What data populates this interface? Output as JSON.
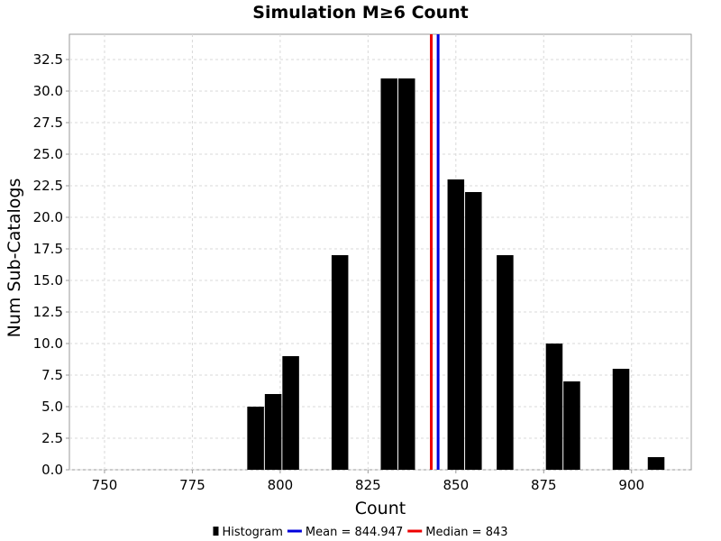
{
  "chart_data": {
    "type": "bar",
    "title": "Simulation M≥6 Count",
    "xlabel": "Count",
    "ylabel": "Num Sub-Catalogs",
    "xlim": [
      740,
      917
    ],
    "ylim": [
      0,
      34.5
    ],
    "grid": true,
    "x_ticks": [
      750,
      775,
      800,
      825,
      850,
      875,
      900
    ],
    "y_ticks": [
      0.0,
      2.5,
      5.0,
      7.5,
      10.0,
      12.5,
      15.0,
      17.5,
      20.0,
      22.5,
      25.0,
      27.5,
      30.0,
      32.5
    ],
    "bin_width": 4.75,
    "bins": [
      {
        "center": 793,
        "value": 5
      },
      {
        "center": 798,
        "value": 6
      },
      {
        "center": 803,
        "value": 9
      },
      {
        "center": 817,
        "value": 17
      },
      {
        "center": 831,
        "value": 31
      },
      {
        "center": 836,
        "value": 31
      },
      {
        "center": 850,
        "value": 23
      },
      {
        "center": 855,
        "value": 22
      },
      {
        "center": 864,
        "value": 17
      },
      {
        "center": 878,
        "value": 10
      },
      {
        "center": 883,
        "value": 7
      },
      {
        "center": 897,
        "value": 8
      },
      {
        "center": 907,
        "value": 1
      }
    ],
    "reference_lines": [
      {
        "name": "Mean",
        "value": 844.947,
        "color": "#0000dd"
      },
      {
        "name": "Median",
        "value": 843,
        "color": "#ee0000"
      }
    ],
    "bar_color": "#000000",
    "legend_position": "bottom",
    "legend": [
      {
        "label": "Histogram",
        "kind": "bar",
        "color": "#000000"
      },
      {
        "label": "Mean = 844.947",
        "kind": "line",
        "color": "#0000dd"
      },
      {
        "label": "Median = 843",
        "kind": "line",
        "color": "#ee0000"
      }
    ]
  }
}
